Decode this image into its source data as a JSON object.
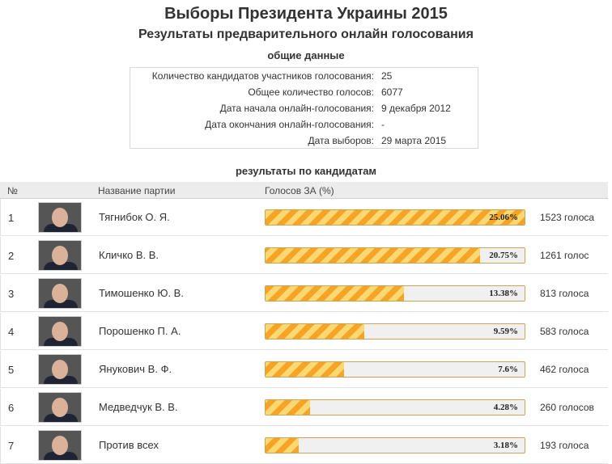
{
  "page": {
    "title": "Выборы Президента Украины 2015",
    "subtitle": "Результаты предварительного онлайн голосования"
  },
  "general": {
    "heading": "общие данные",
    "rows": [
      {
        "label": "Количество кандидатов участников голосования:",
        "value": "25"
      },
      {
        "label": "Общее количество голосов:",
        "value": "6077"
      },
      {
        "label": "Дата начала онлайн-голосования:",
        "value": "9 декабря 2012"
      },
      {
        "label": "Дата окончания онлайн-голосования:",
        "value": "-"
      },
      {
        "label": "Дата выборов:",
        "value": "29 марта 2015"
      }
    ]
  },
  "results": {
    "heading": "результаты по кандидатам",
    "columns": {
      "num": "№",
      "name": "Название партии",
      "votes": "Голосов ЗА (%)"
    },
    "rows": [
      {
        "num": "1",
        "name": "Тягнибок О. Я.",
        "percent": 25.06,
        "percent_label": "25.06%",
        "votes": "1523 голоса"
      },
      {
        "num": "2",
        "name": "Кличко В. В.",
        "percent": 20.75,
        "percent_label": "20.75%",
        "votes": "1261 голос"
      },
      {
        "num": "3",
        "name": "Тимошенко Ю. В.",
        "percent": 13.38,
        "percent_label": "13.38%",
        "votes": "813 голоса"
      },
      {
        "num": "4",
        "name": "Порошенко П. А.",
        "percent": 9.59,
        "percent_label": "9.59%",
        "votes": "583 голоса"
      },
      {
        "num": "5",
        "name": "Янукович В. Ф.",
        "percent": 7.6,
        "percent_label": "7.6%",
        "votes": "462 голоса"
      },
      {
        "num": "6",
        "name": "Медведчук В. В.",
        "percent": 4.28,
        "percent_label": "4.28%",
        "votes": "260 голосов"
      },
      {
        "num": "7",
        "name": "Против всех",
        "percent": 3.18,
        "percent_label": "3.18%",
        "votes": "193 голоса"
      }
    ]
  },
  "colors": {
    "bar_stripe_dark": "#f6a426",
    "bar_stripe_light": "#fcd873",
    "bar_track": "#f0f0f0"
  }
}
